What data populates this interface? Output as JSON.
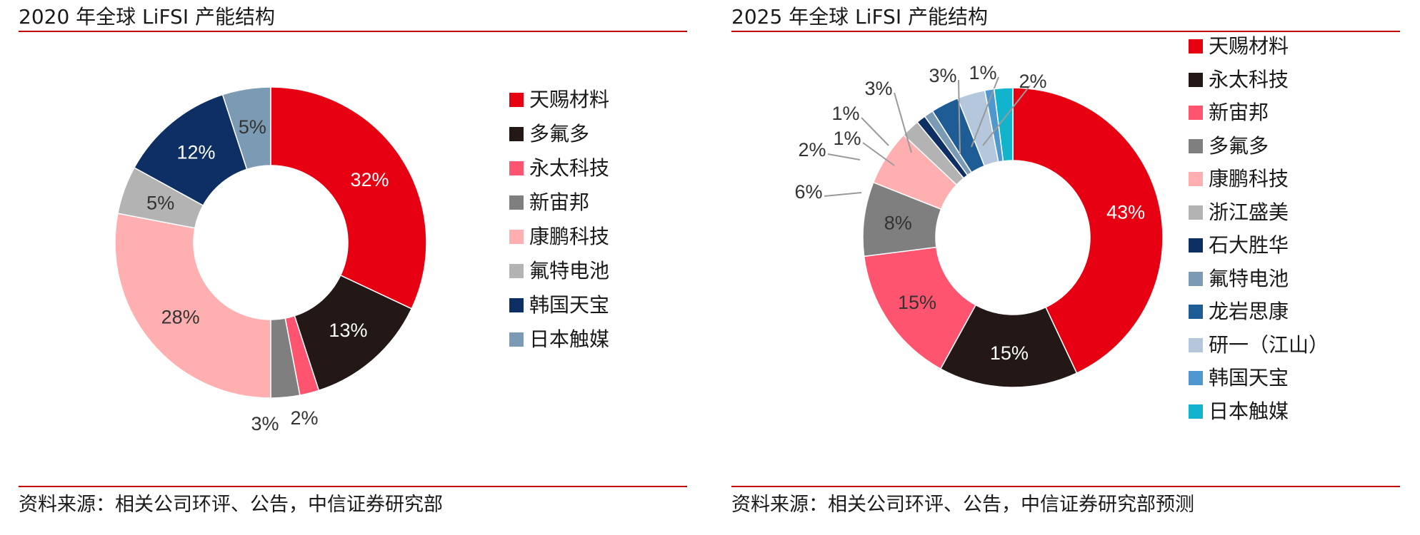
{
  "charts": [
    {
      "title": "2020 年全球 LiFSI 产能结构",
      "source": "资料来源：相关公司环评、公告，中信证券研究部",
      "legend": [
        "天赐材料",
        "多氟多",
        "永太科技",
        "新宙邦",
        "康鹏科技",
        "氟特电池",
        "韩国天宝",
        "日本触媒"
      ]
    },
    {
      "title": "2025 年全球 LiFSI 产能结构",
      "source": "资料来源：相关公司环评、公告，中信证券研究部预测",
      "legend": [
        "天赐材料",
        "永太科技",
        "新宙邦",
        "多氟多",
        "康鹏科技",
        "浙江盛美",
        "石大胜华",
        "氟特电池",
        "龙岩思康",
        "研一（江山）",
        "韩国天宝",
        "日本触媒"
      ]
    }
  ],
  "chart_data": [
    {
      "type": "pie",
      "title": "2020 年全球 LiFSI 产能结构",
      "donut": true,
      "start_angle": "12 o'clock, clockwise",
      "legend_position": "right",
      "categories": [
        "天赐材料",
        "多氟多",
        "永太科技",
        "新宙邦",
        "康鹏科技",
        "氟特电池",
        "韩国天宝",
        "日本触媒"
      ],
      "slices": [
        {
          "name": "天赐材料",
          "value": 32,
          "label": "32%",
          "color": "#e60012",
          "label_color": "#ffffff",
          "outside": false
        },
        {
          "name": "多氟多",
          "value": 13,
          "label": "13%",
          "color": "#231815",
          "label_color": "#ffffff",
          "outside": false
        },
        {
          "name": "永太科技",
          "value": 2,
          "label": "2%",
          "color": "#ff5470",
          "label_color": "#333333",
          "outside": true
        },
        {
          "name": "新宙邦",
          "value": 3,
          "label": "3%",
          "color": "#7f7f7f",
          "label_color": "#333333",
          "outside": true
        },
        {
          "name": "康鹏科技",
          "value": 28,
          "label": "28%",
          "color": "#ffafb0",
          "label_color": "#333333",
          "outside": false
        },
        {
          "name": "氟特电池",
          "value": 5,
          "label": "5%",
          "color": "#b3b3b3",
          "label_color": "#333333",
          "outside": false
        },
        {
          "name": "韩国天宝",
          "value": 12,
          "label": "12%",
          "color": "#0d2f63",
          "label_color": "#ffffff",
          "outside": false
        },
        {
          "name": "日本触媒",
          "value": 5,
          "label": "5%",
          "color": "#7b9bb5",
          "label_color": "#333333",
          "outside": false
        }
      ]
    },
    {
      "type": "pie",
      "title": "2025 年全球 LiFSI 产能结构",
      "donut": true,
      "start_angle": "12 o'clock, clockwise",
      "legend_position": "right",
      "categories": [
        "天赐材料",
        "永太科技",
        "新宙邦",
        "多氟多",
        "康鹏科技",
        "浙江盛美",
        "石大胜华",
        "氟特电池",
        "龙岩思康",
        "研一（江山）",
        "韩国天宝",
        "日本触媒"
      ],
      "slices": [
        {
          "name": "天赐材料",
          "value": 43,
          "label": "43%",
          "color": "#e60012",
          "label_color": "#ffffff",
          "outside": false
        },
        {
          "name": "永太科技",
          "value": 15,
          "label": "15%",
          "color": "#231815",
          "label_color": "#ffffff",
          "outside": false
        },
        {
          "name": "新宙邦",
          "value": 15,
          "label": "15%",
          "color": "#ff5470",
          "label_color": "#333333",
          "outside": false
        },
        {
          "name": "多氟多",
          "value": 8,
          "label": "8%",
          "color": "#7f7f7f",
          "label_color": "#333333",
          "outside": false
        },
        {
          "name": "康鹏科技",
          "value": 6,
          "label": "6%",
          "color": "#ffafb0",
          "label_color": "#333333",
          "outside": true
        },
        {
          "name": "浙江盛美",
          "value": 2,
          "label": "2%",
          "color": "#b3b3b3",
          "label_color": "#333333",
          "outside": true
        },
        {
          "name": "石大胜华",
          "value": 1,
          "label": "1%",
          "color": "#0d2f63",
          "label_color": "#333333",
          "outside": true
        },
        {
          "name": "氟特电池",
          "value": 1,
          "label": "1%",
          "color": "#7b9bb5",
          "label_color": "#333333",
          "outside": true
        },
        {
          "name": "龙岩思康",
          "value": 3,
          "label": "3%",
          "color": "#1e5c96",
          "label_color": "#333333",
          "outside": true
        },
        {
          "name": "研一（江山）",
          "value": 3,
          "label": "3%",
          "color": "#b4c7dc",
          "label_color": "#333333",
          "outside": true
        },
        {
          "name": "韩国天宝",
          "value": 1,
          "label": "1%",
          "color": "#4f97cf",
          "label_color": "#333333",
          "outside": true
        },
        {
          "name": "日本触媒",
          "value": 2,
          "label": "2%",
          "color": "#12b3cc",
          "label_color": "#333333",
          "outside": true
        }
      ]
    }
  ]
}
